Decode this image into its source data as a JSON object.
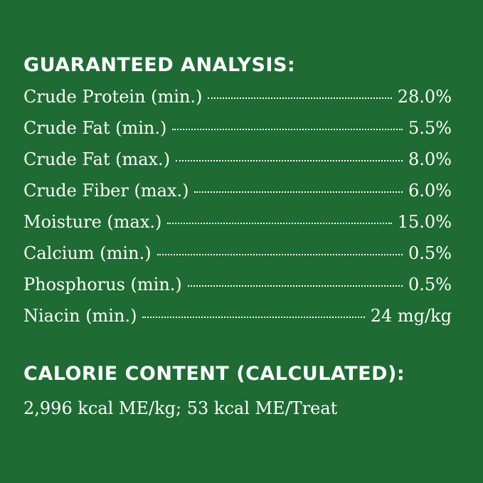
{
  "guaranteed_analysis": {
    "title": "GUARANTEED ANALYSIS:",
    "rows": [
      {
        "label": "Crude Protein (min.)",
        "value": "28.0%"
      },
      {
        "label": "Crude Fat (min.)",
        "value": "5.5%"
      },
      {
        "label": "Crude Fat (max.)",
        "value": "8.0%"
      },
      {
        "label": "Crude Fiber (max.)",
        "value": "6.0%"
      },
      {
        "label": "Moisture (max.)",
        "value": "15.0%"
      },
      {
        "label": "Calcium (min.)",
        "value": "0.5%"
      },
      {
        "label": "Phosphorus (min.)",
        "value": "0.5%"
      },
      {
        "label": "Niacin (min.)",
        "value": "24 mg/kg"
      }
    ]
  },
  "calorie_content": {
    "title": "CALORIE CONTENT (CALCULATED):",
    "text": "2,996 kcal ME/kg; 53 kcal ME/Treat"
  },
  "colors": {
    "background": "#1f6b34",
    "text": "#ffffff"
  }
}
